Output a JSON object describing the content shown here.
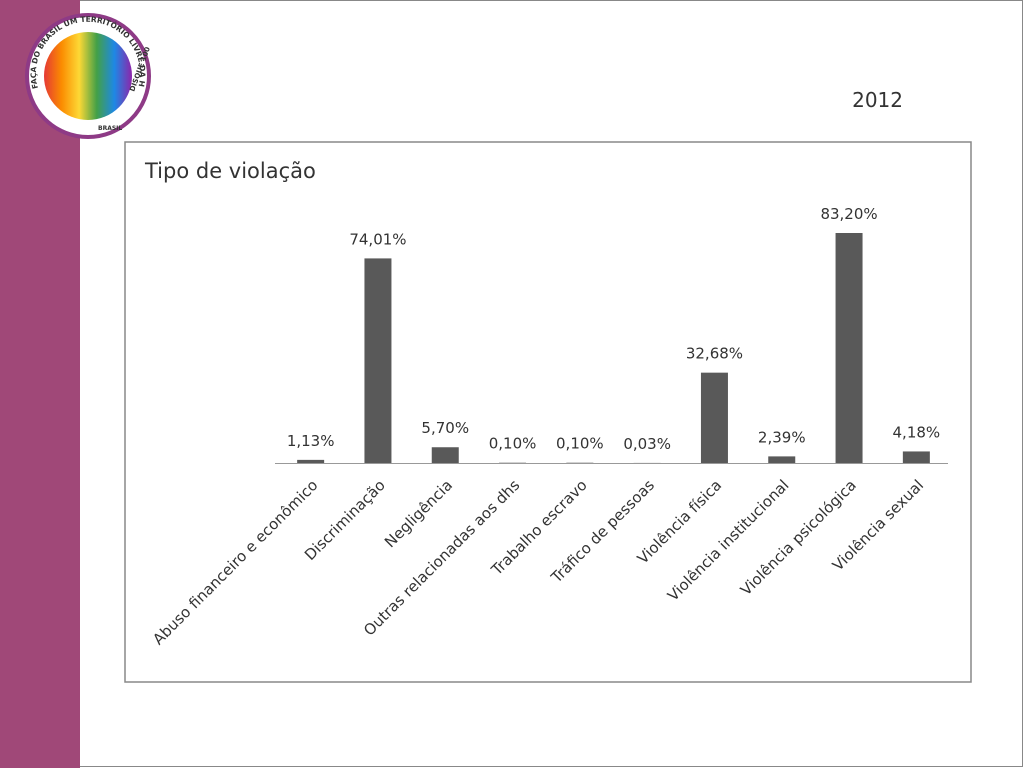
{
  "logo": {
    "arc_text": "FAÇA DO BRASIL UM TERRITÓRIO LIVRE DA HOMOFOBIA",
    "hotline": "DISQUE 100",
    "brand": "BRASIL"
  },
  "year": "2012",
  "chart_data": {
    "type": "bar",
    "title": "Tipo de violação",
    "categories": [
      "Abuso financeiro e econômico",
      "Discriminação",
      "Negligência",
      "Outras relacionadas aos dhs",
      "Trabalho escravo",
      "Tráfico de pessoas",
      "Violência física",
      "Violência institucional",
      "Violência psicológica",
      "Violência sexual"
    ],
    "values": [
      1.13,
      74.01,
      5.7,
      0.1,
      0.1,
      0.03,
      32.68,
      2.39,
      83.2,
      4.18
    ],
    "value_labels": [
      "1,13%",
      "74,01%",
      "5,70%",
      "0,10%",
      "0,10%",
      "0,03%",
      "32,68%",
      "2,39%",
      "83,20%",
      "4,18%"
    ],
    "color": "#595959"
  }
}
